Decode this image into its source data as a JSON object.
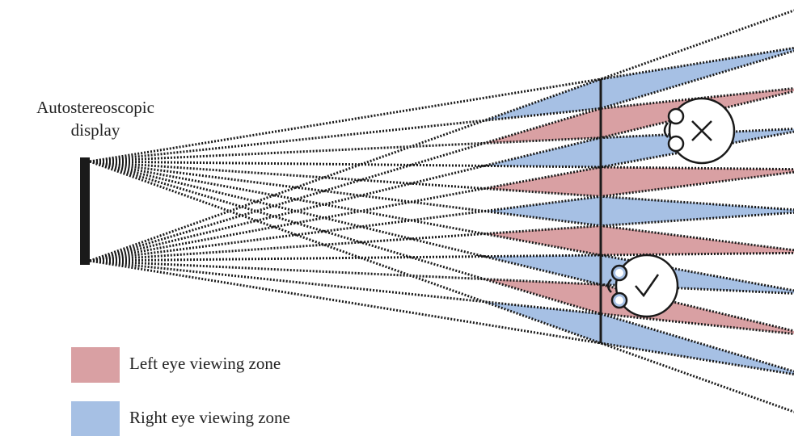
{
  "display_label": [
    "Autostereoscopic",
    "display"
  ],
  "legend": [
    {
      "label": "Left eye viewing zone",
      "color": "#d9a0a3"
    },
    {
      "label": "Right eye viewing zone",
      "color": "#a6c0e4"
    }
  ]
}
